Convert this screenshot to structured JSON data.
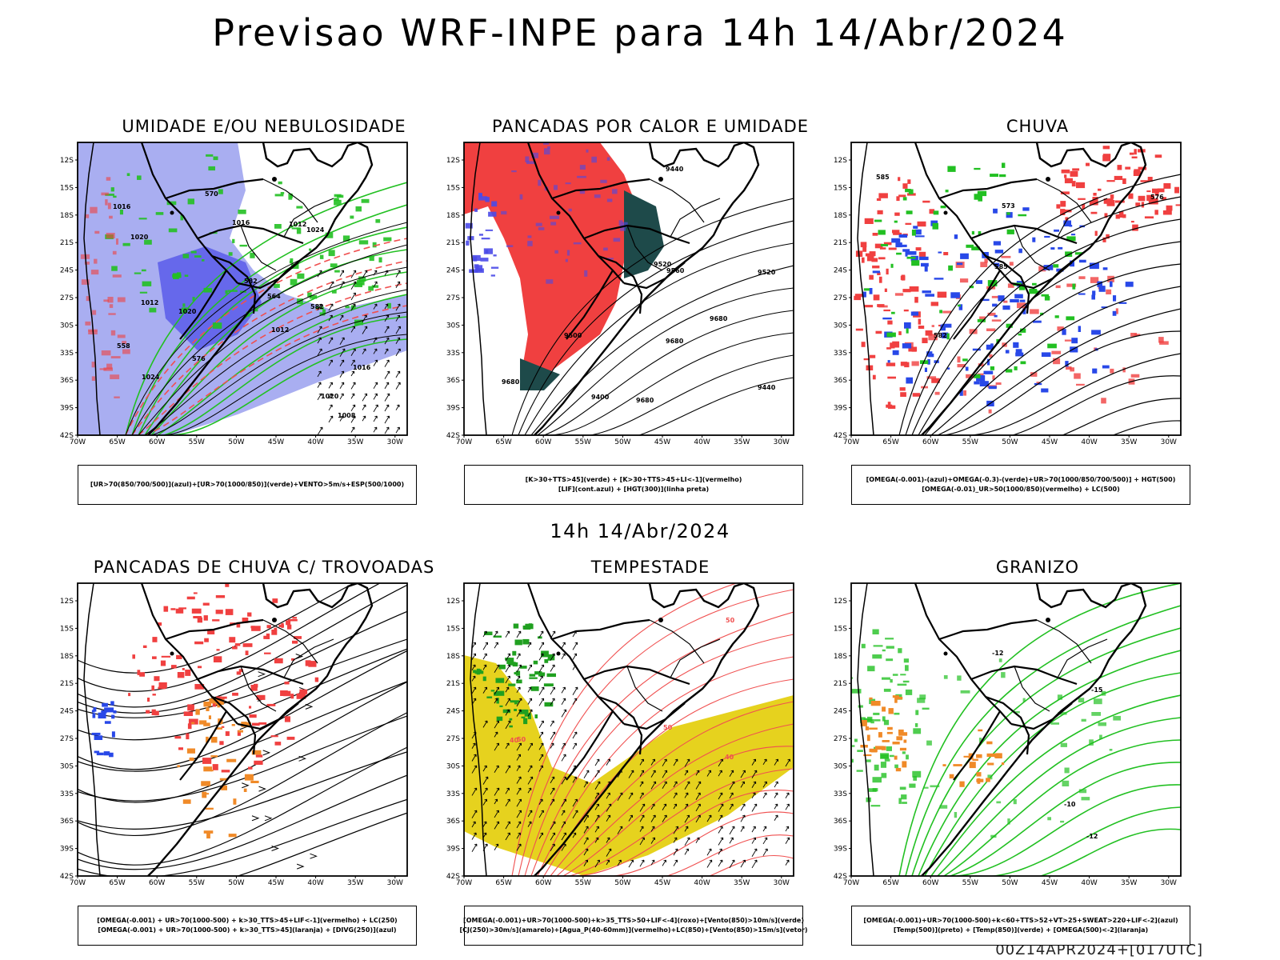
{
  "header": {
    "title": "Previsao WRF-INPE  para 14h 14/Abr/2024"
  },
  "subtitle": "14h 14/Abr/2024",
  "footer": "00Z14APR2024+[017UTC]",
  "axes": {
    "lat_labels": [
      "12S",
      "15S",
      "18S",
      "21S",
      "24S",
      "27S",
      "30S",
      "33S",
      "36S",
      "39S",
      "42S"
    ],
    "lon_labels": [
      "70W",
      "65W",
      "60W",
      "55W",
      "50W",
      "45W",
      "40W",
      "35W",
      "30W"
    ]
  },
  "colors": {
    "humid_blue": "#9aa0ee",
    "deep_blue": "#4a4ae8",
    "green_contour": "#22c022",
    "red_fill": "#f04040",
    "dark_teal": "#1e4a4a",
    "yellow_fill": "#e6d21e",
    "orange_fill": "#f08a28",
    "red_contour": "#f05050",
    "black": "#000000"
  },
  "panels": [
    {
      "id": "umidade",
      "title": "UMIDADE E/OU NEBULOSIDADE",
      "legend": [
        "[UR>70(850/700/500)](azul)+[UR>70(1000/850)](verde)+VENTO>5m/s+ESP(500/1000)"
      ],
      "contour_labels": [
        "1008",
        "1012",
        "1012",
        "1016",
        "1016",
        "1020",
        "1024",
        "1020",
        "1024",
        "1016",
        "1012",
        "1020",
        "576",
        "570",
        "564",
        "558",
        "582",
        "582"
      ]
    },
    {
      "id": "pancadas_calor",
      "title": "PANCADAS POR CALOR E UMIDADE",
      "legend": [
        "[K>30+TTS>45](verde)  +  [K>30+TTS>45+LI<-1](vermelho)",
        "[LIF](cont.azul)  +  [HGT(300)](linha preta)"
      ],
      "contour_labels": [
        "9680",
        "9680",
        "9680",
        "9560",
        "9520",
        "9680",
        "9440",
        "9500",
        "9520",
        "9440",
        "9400"
      ]
    },
    {
      "id": "chuva",
      "title": "CHUVA",
      "legend": [
        "[OMEGA(-0.001)-(azul)+OMEGA(-0.3)-(verde)+UR>70(1000/850/700/500)]  +  HGT(500)",
        "[OMEGA(-0.01)_UR>50(1000/850)(vermelho)  +  LC(500)"
      ],
      "contour_labels": [
        "585",
        "576",
        "573",
        "582",
        "585"
      ]
    },
    {
      "id": "trovoadas",
      "title": "PANCADAS DE CHUVA C/ TROVOADAS",
      "legend": [
        "[OMEGA(-0.001)  +  UR>70(1000-500)  +  k>30_TTS>45+LIF<-1](vermelho)  +  LC(250)",
        "[OMEGA(-0.001)  +  UR>70(1000-500)  +  k>30_TTS>45](laranja)  +  [DIVG(250)](azul)"
      ],
      "contour_labels": []
    },
    {
      "id": "tempestade",
      "title": "TEMPESTADE",
      "legend": [
        "[OMEGA(-0.001)+UR>70(1000-500)+k>35_TTS>50+LIF<-4](roxo)+[Vento(850)>10m/s](verde)",
        "[CJ(250)>30m/s](amarelo)+[Agua_P(40-60mm)](vermelho)+LC(850)+[Vento(850)>15m/s](vetor)"
      ],
      "contour_labels": [
        "50",
        "40",
        "50",
        "40",
        "50"
      ]
    },
    {
      "id": "granizo",
      "title": "GRANIZO",
      "legend": [
        "[OMEGA(-0.001)+UR>70(1000-500)+k<60+TTS>52+VT>25+SWEAT>220+LIF<-2](azul)",
        "[Temp(500)](preto)  +  [Temp(850)](verde)  +  [OMEGA(500)<-2](laranja)"
      ],
      "contour_labels": [
        "-12",
        "-12",
        "-15",
        "-10"
      ]
    }
  ]
}
